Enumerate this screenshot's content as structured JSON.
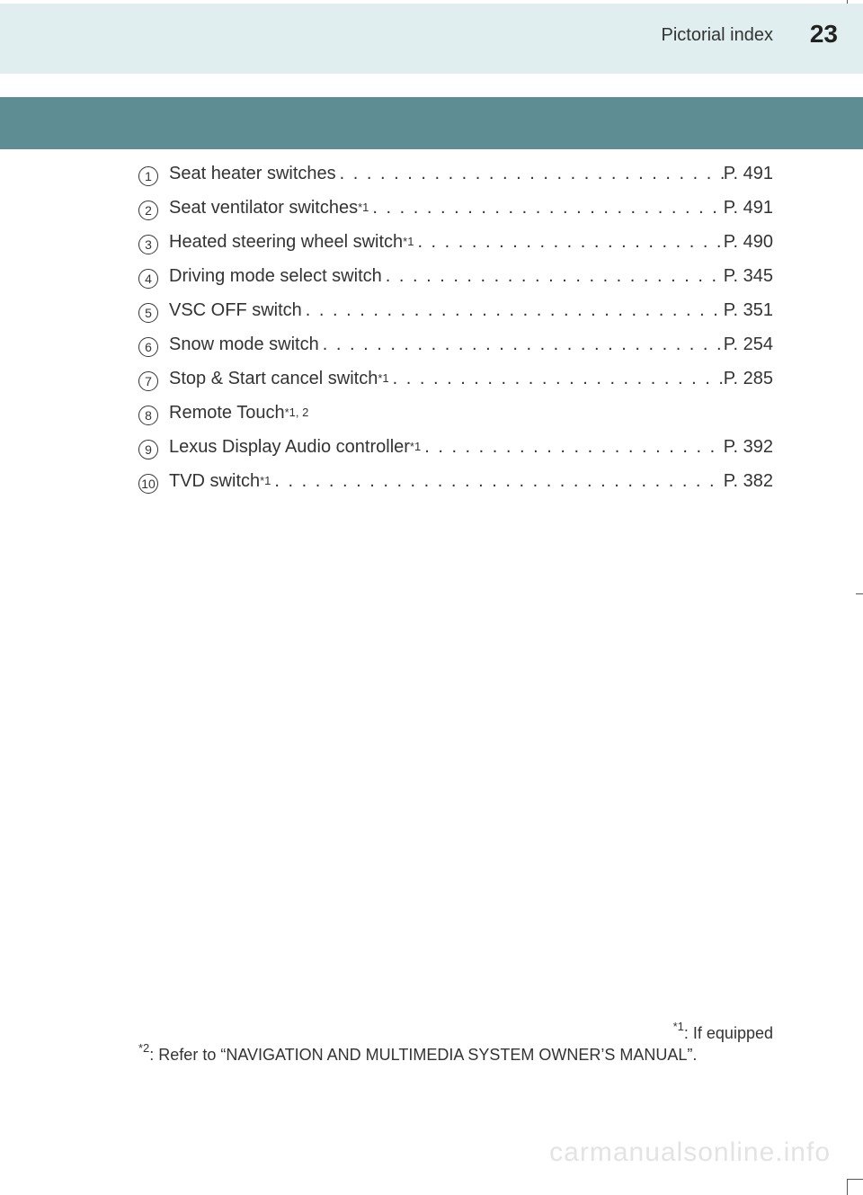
{
  "header": {
    "section_title": "Pictorial index",
    "page_number": "23"
  },
  "entries": [
    {
      "num": "1",
      "label": "Seat heater switches ",
      "sup": "",
      "page": " P. 491",
      "has_page": true
    },
    {
      "num": "2",
      "label": "Seat ventilator switches",
      "sup": "*1",
      "page": " P. 491",
      "has_page": true
    },
    {
      "num": "3",
      "label": "Heated steering wheel switch",
      "sup": "*1",
      "page": "P. 490",
      "has_page": true
    },
    {
      "num": "4",
      "label": "Driving mode select switch ",
      "sup": "",
      "page": "P. 345",
      "has_page": true
    },
    {
      "num": "5",
      "label": "VSC OFF switch",
      "sup": "",
      "page": " P. 351",
      "has_page": true
    },
    {
      "num": "6",
      "label": "Snow mode switch",
      "sup": "",
      "page": "P. 254",
      "has_page": true
    },
    {
      "num": "7",
      "label": "Stop & Start cancel switch",
      "sup": "*1",
      "page": "P. 285",
      "has_page": true
    },
    {
      "num": "8",
      "label": "Remote Touch",
      "sup": "*1, 2",
      "page": "",
      "has_page": false
    },
    {
      "num": "9",
      "label": "Lexus Display Audio controller",
      "sup": "*1",
      "page": "P. 392",
      "has_page": true
    },
    {
      "num": "10",
      "label": "TVD switch",
      "sup": "*1",
      "page": "P. 382",
      "has_page": true
    }
  ],
  "footnotes": {
    "f1_sup": "*1",
    "f1_text": ": If equipped",
    "f2_sup": "*2",
    "f2_text": ": Refer to “NAVIGATION AND MULTIMEDIA SYSTEM OWNER’S MANUAL”."
  },
  "watermark": "carmanualsonline.info",
  "colors": {
    "header_bg": "#e0eef0",
    "subband_bg": "#5e8e93",
    "text": "#333333",
    "watermark": "#e3e3e3"
  }
}
